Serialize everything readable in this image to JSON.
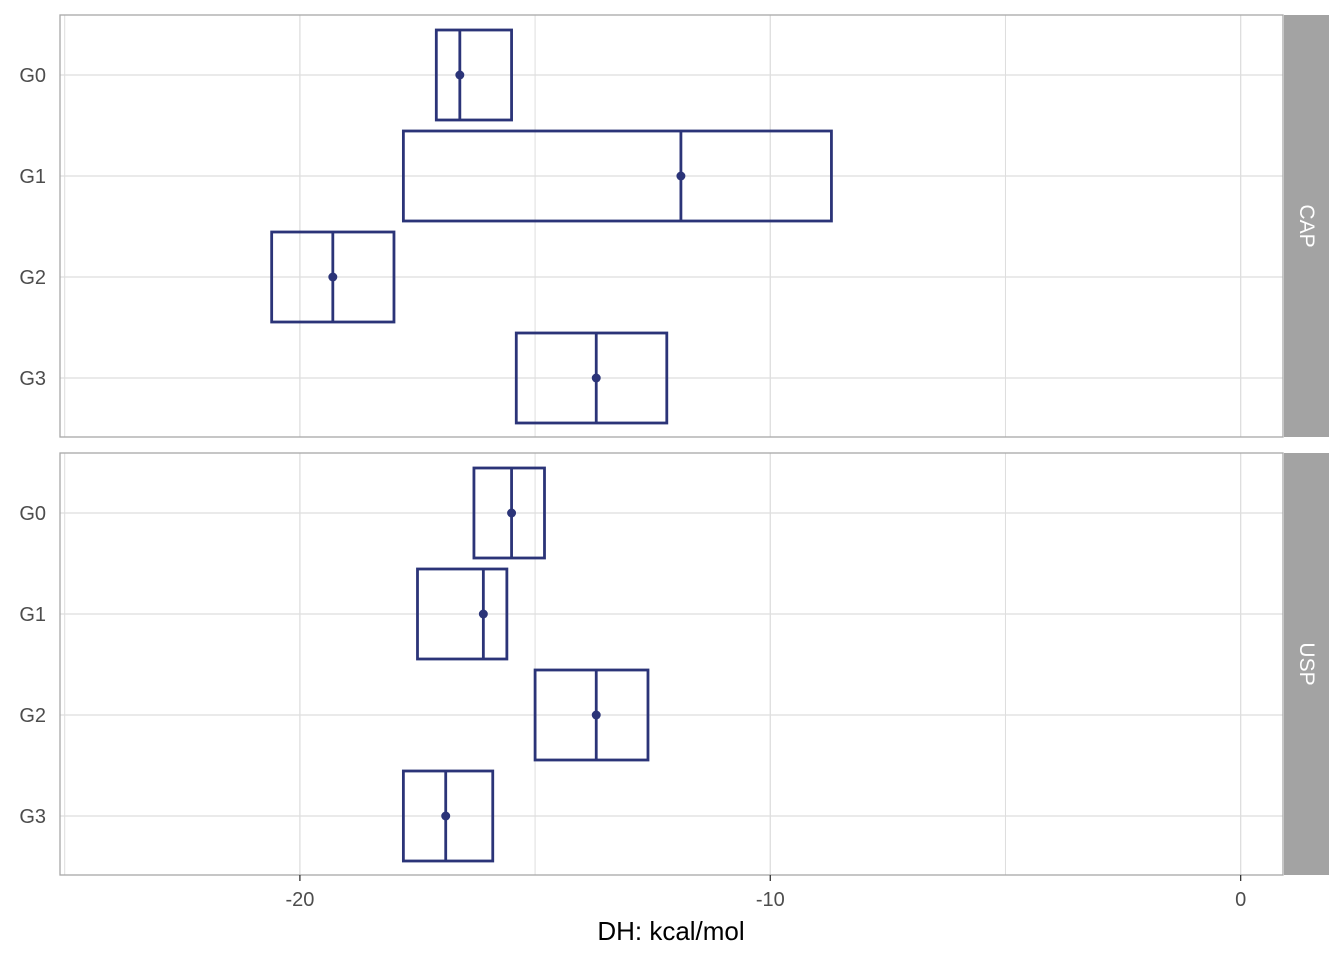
{
  "chart_data": {
    "type": "crossbar",
    "xlabel": "DH: kcal/mol",
    "ylabel": "",
    "xlim": [
      -25.1,
      0.9
    ],
    "x_ticks": [
      -20,
      -10,
      0
    ],
    "x_tick_labels": [
      "-20",
      "-10",
      "0"
    ],
    "x_minor_ticks": [
      -25,
      -15,
      -5
    ],
    "grid": true,
    "colors": {
      "mark": "#2b3478",
      "grid": "#dedede",
      "border": "#a8a8a8",
      "strip": "#a3a3a3",
      "strip_text": "#ffffff"
    },
    "categories": [
      "G0",
      "G1",
      "G2",
      "G3"
    ],
    "panels": [
      {
        "label": "CAP",
        "rows": [
          {
            "category": "G0",
            "min": -17.1,
            "mid": -16.6,
            "max": -15.5
          },
          {
            "category": "G1",
            "min": -17.8,
            "mid": -11.9,
            "max": -8.7
          },
          {
            "category": "G2",
            "min": -20.6,
            "mid": -19.3,
            "max": -18.0
          },
          {
            "category": "G3",
            "min": -15.4,
            "mid": -13.7,
            "max": -12.2
          }
        ]
      },
      {
        "label": "USP",
        "rows": [
          {
            "category": "G0",
            "min": -16.3,
            "mid": -15.5,
            "max": -14.8
          },
          {
            "category": "G1",
            "min": -17.5,
            "mid": -16.1,
            "max": -15.6
          },
          {
            "category": "G2",
            "min": -15.0,
            "mid": -13.7,
            "max": -12.6
          },
          {
            "category": "G3",
            "min": -17.8,
            "mid": -16.9,
            "max": -15.9
          }
        ]
      }
    ]
  }
}
